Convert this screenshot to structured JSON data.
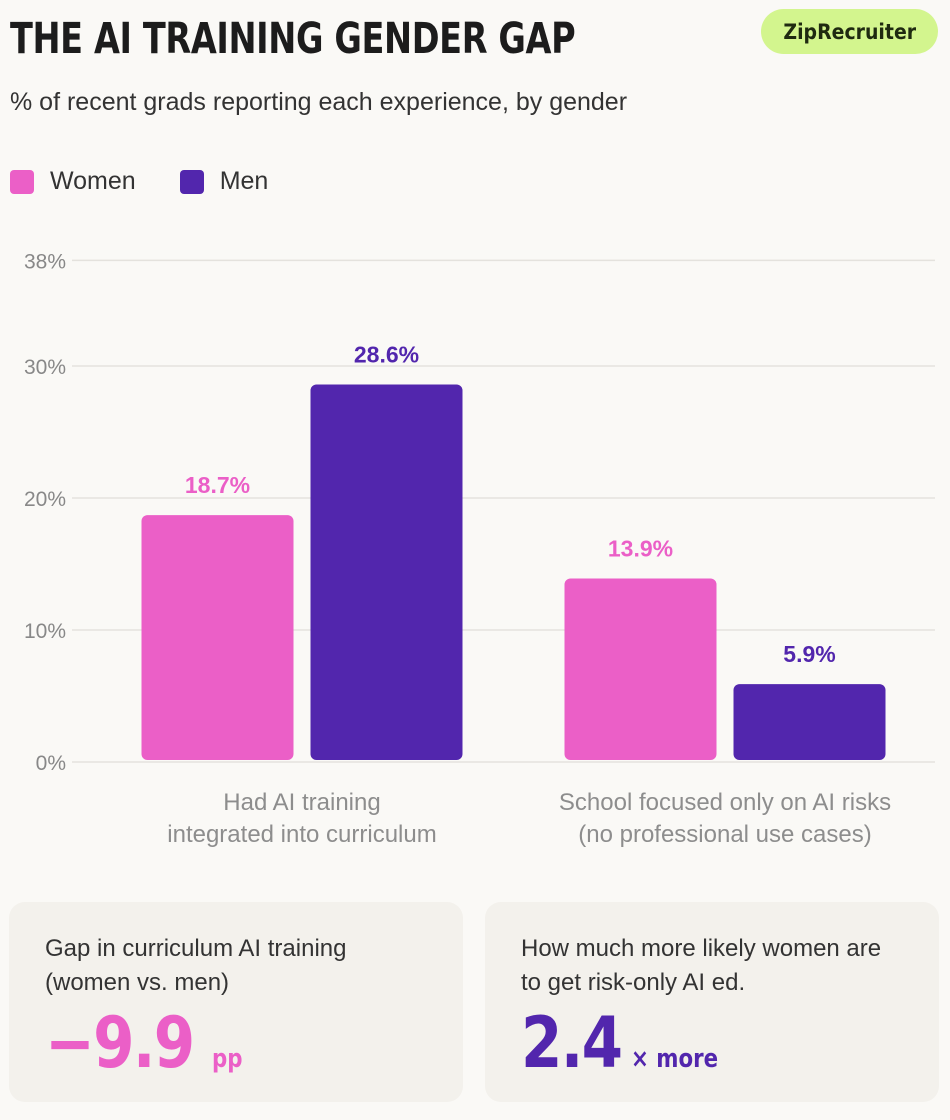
{
  "header": {
    "title": "THE AI TRAINING GENDER GAP",
    "subtitle": "% of recent grads reporting each experience, by gender",
    "brand": "ZipRecruiter"
  },
  "colors": {
    "women": "#eb5fc7",
    "men": "#5226ad",
    "grid": "#e4e2dd",
    "axis_text": "#888888",
    "category_text": "#8d8d8d",
    "brand_bg": "#d3f58e"
  },
  "chart_data": {
    "type": "bar",
    "title": "THE AI TRAINING GENDER GAP",
    "subtitle": "% of recent grads reporting each experience, by gender",
    "categories": [
      [
        "Had AI training",
        "integrated into curriculum"
      ],
      [
        "School focused only on AI risks",
        "(no professional use cases)"
      ]
    ],
    "series": [
      {
        "name": "Women",
        "values": [
          18.7,
          13.9
        ],
        "labels": [
          "18.7%",
          "13.9%"
        ]
      },
      {
        "name": "Men",
        "values": [
          28.6,
          5.9
        ],
        "labels": [
          "28.6%",
          "5.9%"
        ]
      }
    ],
    "yticks": [
      0,
      10,
      20,
      30,
      38
    ],
    "ytick_labels": [
      "0%",
      "10%",
      "20%",
      "30%",
      "38%"
    ],
    "ylim": [
      0,
      38
    ],
    "grid": true,
    "legend": "top-left",
    "xlabel": "",
    "ylabel": ""
  },
  "cards": [
    {
      "label_line1": "Gap in curriculum AI training",
      "label_line2": "(women vs. men)",
      "value": "−9.9",
      "unit": "pp",
      "color": "#eb5fc7"
    },
    {
      "label_line1": "How much more likely women are",
      "label_line2": "to get risk-only AI ed.",
      "value": "2.4",
      "unit": "× more",
      "color": "#5226ad"
    }
  ]
}
